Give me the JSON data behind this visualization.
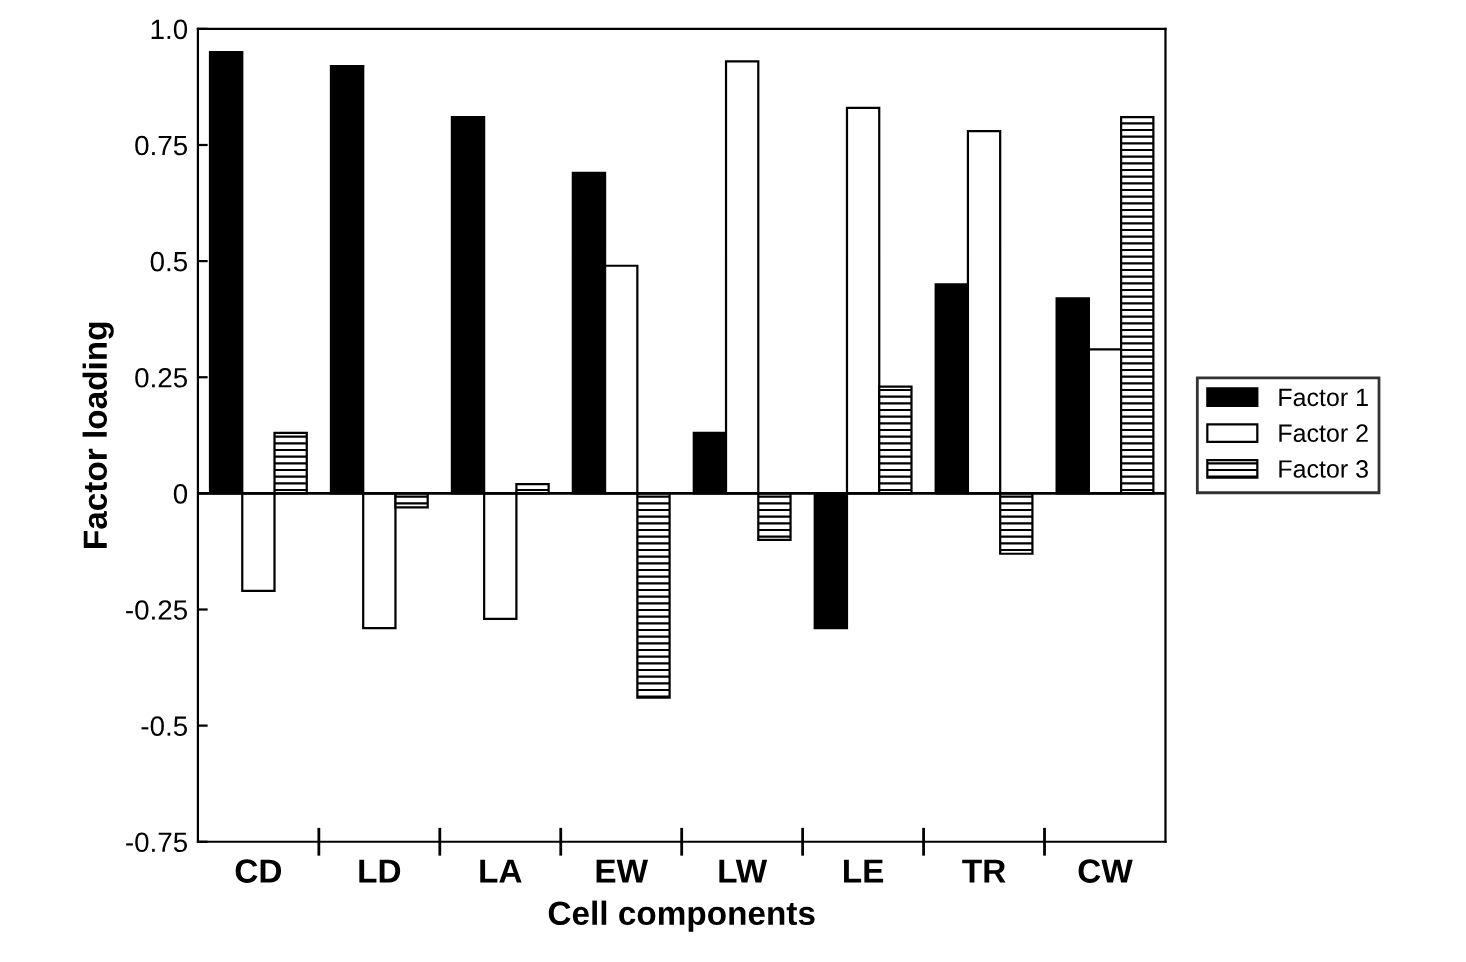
{
  "chart_data": {
    "type": "bar",
    "xlabel": "Cell components",
    "ylabel": "Factor loading",
    "categories": [
      "CD",
      "LD",
      "LA",
      "EW",
      "LW",
      "LE",
      "TR",
      "CW"
    ],
    "series": [
      {
        "name": "Factor 1",
        "color": "#000000",
        "values": [
          0.95,
          0.92,
          0.81,
          0.69,
          0.13,
          -0.29,
          0.45,
          0.42
        ]
      },
      {
        "name": "Factor 2",
        "color": "#ffffff",
        "values": [
          -0.21,
          -0.29,
          -0.27,
          0.49,
          0.93,
          0.83,
          0.78,
          0.31
        ]
      },
      {
        "name": "Factor 3",
        "color": "#000000",
        "values": [
          0.13,
          -0.03,
          0.02,
          -0.44,
          -0.1,
          0.23,
          -0.13,
          0.81
        ]
      }
    ],
    "ylim": [
      -0.75,
      1.0
    ],
    "yticks": [
      -0.75,
      -0.5,
      -0.25,
      0,
      0.25,
      0.5,
      0.75,
      {
        "value": 1.0,
        "label": "1.0"
      }
    ],
    "legend": "right"
  }
}
